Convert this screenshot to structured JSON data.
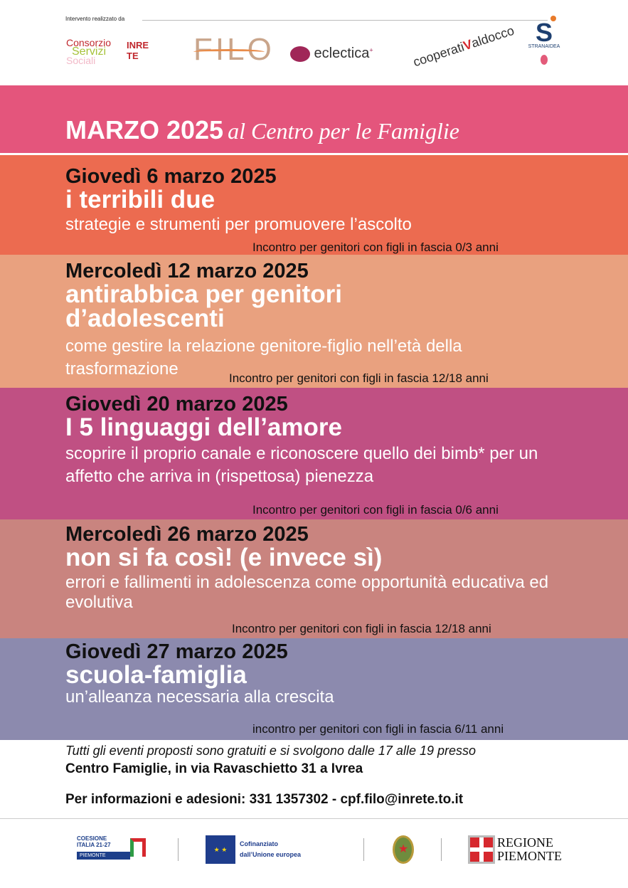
{
  "header_strip": {
    "intro": "Intervento realizzato da",
    "partners": [
      "Consorzio Servizi Sociali INRETE",
      "FILO",
      "eclectica",
      "cooperativa Valdocco animazione",
      "STRANAIDEA"
    ]
  },
  "title": {
    "main": "MARZO 2025",
    "sub": "al Centro per le Famiglie"
  },
  "events": [
    {
      "date": "Giovedì 6 marzo 2025",
      "title": "i terribili due",
      "subtitle": "strategie e strumenti per promuovere l’ascolto",
      "note": "Incontro per genitori con figli in fascia 0/3 anni",
      "color": "#ec6b50"
    },
    {
      "date": "Mercoledì 12 marzo 2025",
      "title": "antirabbica per genitori d’adolescenti",
      "subtitle": "come gestire la relazione genitore-figlio nell’età della trasformazione",
      "note": "Incontro per genitori con figli in fascia 12/18 anni",
      "color": "#e9a17f"
    },
    {
      "date": "Giovedì 20 marzo 2025",
      "title": "I 5 linguaggi dell’amore",
      "subtitle": "scoprire il proprio canale e riconoscere quello dei bimb* per un affetto che arriva in (rispettosa) pienezza",
      "note": "Incontro per genitori con figli in fascia 0/6 anni",
      "color": "#c05083"
    },
    {
      "date": "Mercoledì 26 marzo 2025",
      "title": "non si fa così! (e invece sì)",
      "subtitle": "errori e fallimenti in adolescenza come opportunità educativa ed evolutiva",
      "note": "Incontro per genitori con figli in fascia 12/18 anni",
      "color": "#c9847f"
    },
    {
      "date": "Giovedì 27 marzo 2025",
      "title": "scuola-famiglia",
      "subtitle": "un’alleanza necessaria alla crescita",
      "note": "incontro per genitori con figli in fascia 6/11 anni",
      "color": "#8c8aae"
    }
  ],
  "footer": {
    "free": "Tutti gli eventi proposti sono gratuiti e si svolgono dalle 17 alle 19 presso",
    "venue": "Centro Famiglie, in via Ravaschietto 31 a Ivrea",
    "info": "Per informazioni e adesioni: 331 1357302 - cpf.filo@inrete.to.it",
    "funders": [
      "COESIONE ITALIA 21-27 PIEMONTE",
      "Cofinanziato dall’Unione europea",
      "Repubblica Italiana",
      "REGIONE PIEMONTE"
    ]
  }
}
